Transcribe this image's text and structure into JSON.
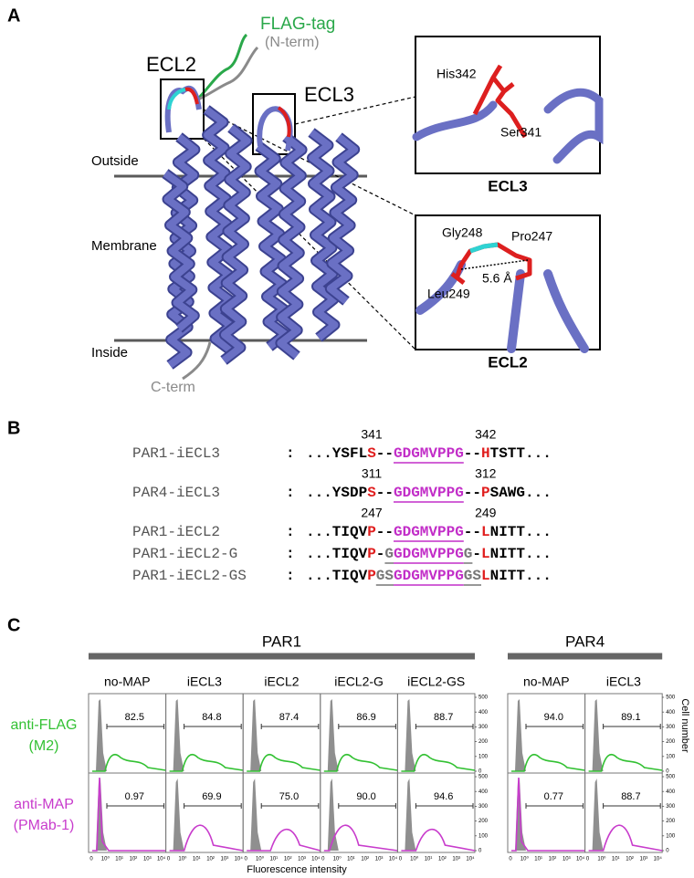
{
  "panel_a": {
    "label": "A",
    "flag_tag": "FLAG-tag",
    "n_term": "(N-term)",
    "ecl2": "ECL2",
    "ecl3": "ECL3",
    "outside": "Outside",
    "membrane": "Membrane",
    "inside": "Inside",
    "c_term": "C-term",
    "zoom_ecl3": {
      "title": "ECL3",
      "his": "His342",
      "ser": "Ser341"
    },
    "zoom_ecl2": {
      "title": "ECL2",
      "gly": "Gly248",
      "pro": "Pro247",
      "leu": "Leu249",
      "distance": "5.6 Å"
    }
  },
  "panel_b": {
    "label": "B",
    "separator": ":",
    "rows": [
      {
        "name": "PAR1-iECL3",
        "segments": [
          {
            "text": "...YSFL",
            "color": "#000000"
          },
          {
            "text": "S",
            "color": "#e01e1e",
            "number": "341"
          },
          {
            "text": "--",
            "color": "#000000"
          },
          {
            "text": "GDGMVPPG",
            "color": "#c22ec8",
            "underline": true
          },
          {
            "text": "--",
            "color": "#000000"
          },
          {
            "text": "H",
            "color": "#e01e1e",
            "number": "342"
          },
          {
            "text": "TSTT...",
            "color": "#000000"
          }
        ]
      },
      {
        "name": "PAR4-iECL3",
        "segments": [
          {
            "text": "...YSDP",
            "color": "#000000"
          },
          {
            "text": "S",
            "color": "#e01e1e",
            "number": "311"
          },
          {
            "text": "--",
            "color": "#000000"
          },
          {
            "text": "GDGMVPPG",
            "color": "#c22ec8",
            "underline": true
          },
          {
            "text": "--",
            "color": "#000000"
          },
          {
            "text": "P",
            "color": "#e01e1e",
            "number": "312"
          },
          {
            "text": "SAWG...",
            "color": "#000000"
          }
        ]
      },
      {
        "name": "PAR1-iECL2",
        "segments": [
          {
            "text": "...TIQV",
            "color": "#000000"
          },
          {
            "text": "P",
            "color": "#e01e1e",
            "number": "247"
          },
          {
            "text": "--",
            "color": "#000000"
          },
          {
            "text": "GDGMVPPG",
            "color": "#c22ec8",
            "underline": true
          },
          {
            "text": "--",
            "color": "#000000"
          },
          {
            "text": "L",
            "color": "#e01e1e",
            "number": "249"
          },
          {
            "text": "NITT...",
            "color": "#000000"
          }
        ]
      },
      {
        "name": "PAR1-iECL2-G",
        "segments": [
          {
            "text": "...TIQV",
            "color": "#000000"
          },
          {
            "text": "P",
            "color": "#e01e1e"
          },
          {
            "text": "-",
            "color": "#000000"
          },
          {
            "text": "G",
            "color": "#777777",
            "underline": true
          },
          {
            "text": "GDGMVPPG",
            "color": "#c22ec8",
            "underline": true
          },
          {
            "text": "G",
            "color": "#777777",
            "underline": true
          },
          {
            "text": "-",
            "color": "#000000"
          },
          {
            "text": "L",
            "color": "#e01e1e"
          },
          {
            "text": "NITT...",
            "color": "#000000"
          }
        ]
      },
      {
        "name": "PAR1-iECL2-GS",
        "segments": [
          {
            "text": "...TIQV",
            "color": "#000000"
          },
          {
            "text": "P",
            "color": "#e01e1e"
          },
          {
            "text": "GS",
            "color": "#777777",
            "underline": true
          },
          {
            "text": "GDGMVPPG",
            "color": "#c22ec8",
            "underline": true
          },
          {
            "text": "GS",
            "color": "#777777",
            "underline": true
          },
          {
            "text": "L",
            "color": "#e01e1e"
          },
          {
            "text": "NITT...",
            "color": "#000000"
          }
        ]
      }
    ]
  },
  "panel_c": {
    "label": "C",
    "groups": [
      {
        "name": "PAR1",
        "columns": [
          "no-MAP",
          "iECL3",
          "iECL2",
          "iECL2-G",
          "iECL2-GS"
        ]
      },
      {
        "name": "PAR4",
        "columns": [
          "no-MAP",
          "iECL3"
        ]
      }
    ],
    "rows": [
      {
        "name": "anti-FLAG",
        "sub": "(M2)",
        "color": "#33c133",
        "values": [
          [
            "82.5",
            "84.8",
            "87.4",
            "86.9",
            "88.7"
          ],
          [
            "94.0",
            "89.1"
          ]
        ]
      },
      {
        "name": "anti-MAP",
        "sub": "(PMab-1)",
        "color": "#c83ccc",
        "values": [
          [
            "0.97",
            "69.9",
            "75.0",
            "90.0",
            "94.6"
          ],
          [
            "0.77",
            "88.7"
          ]
        ]
      }
    ],
    "y_ticks": [
      "0",
      "100",
      "200",
      "300",
      "400",
      "500"
    ],
    "x_ticks": [
      "0",
      "10⁰",
      "10¹",
      "10²",
      "10³",
      "10⁴"
    ],
    "y_axis_label": "Cell number",
    "x_axis_label": "Fluorescence intensity"
  }
}
